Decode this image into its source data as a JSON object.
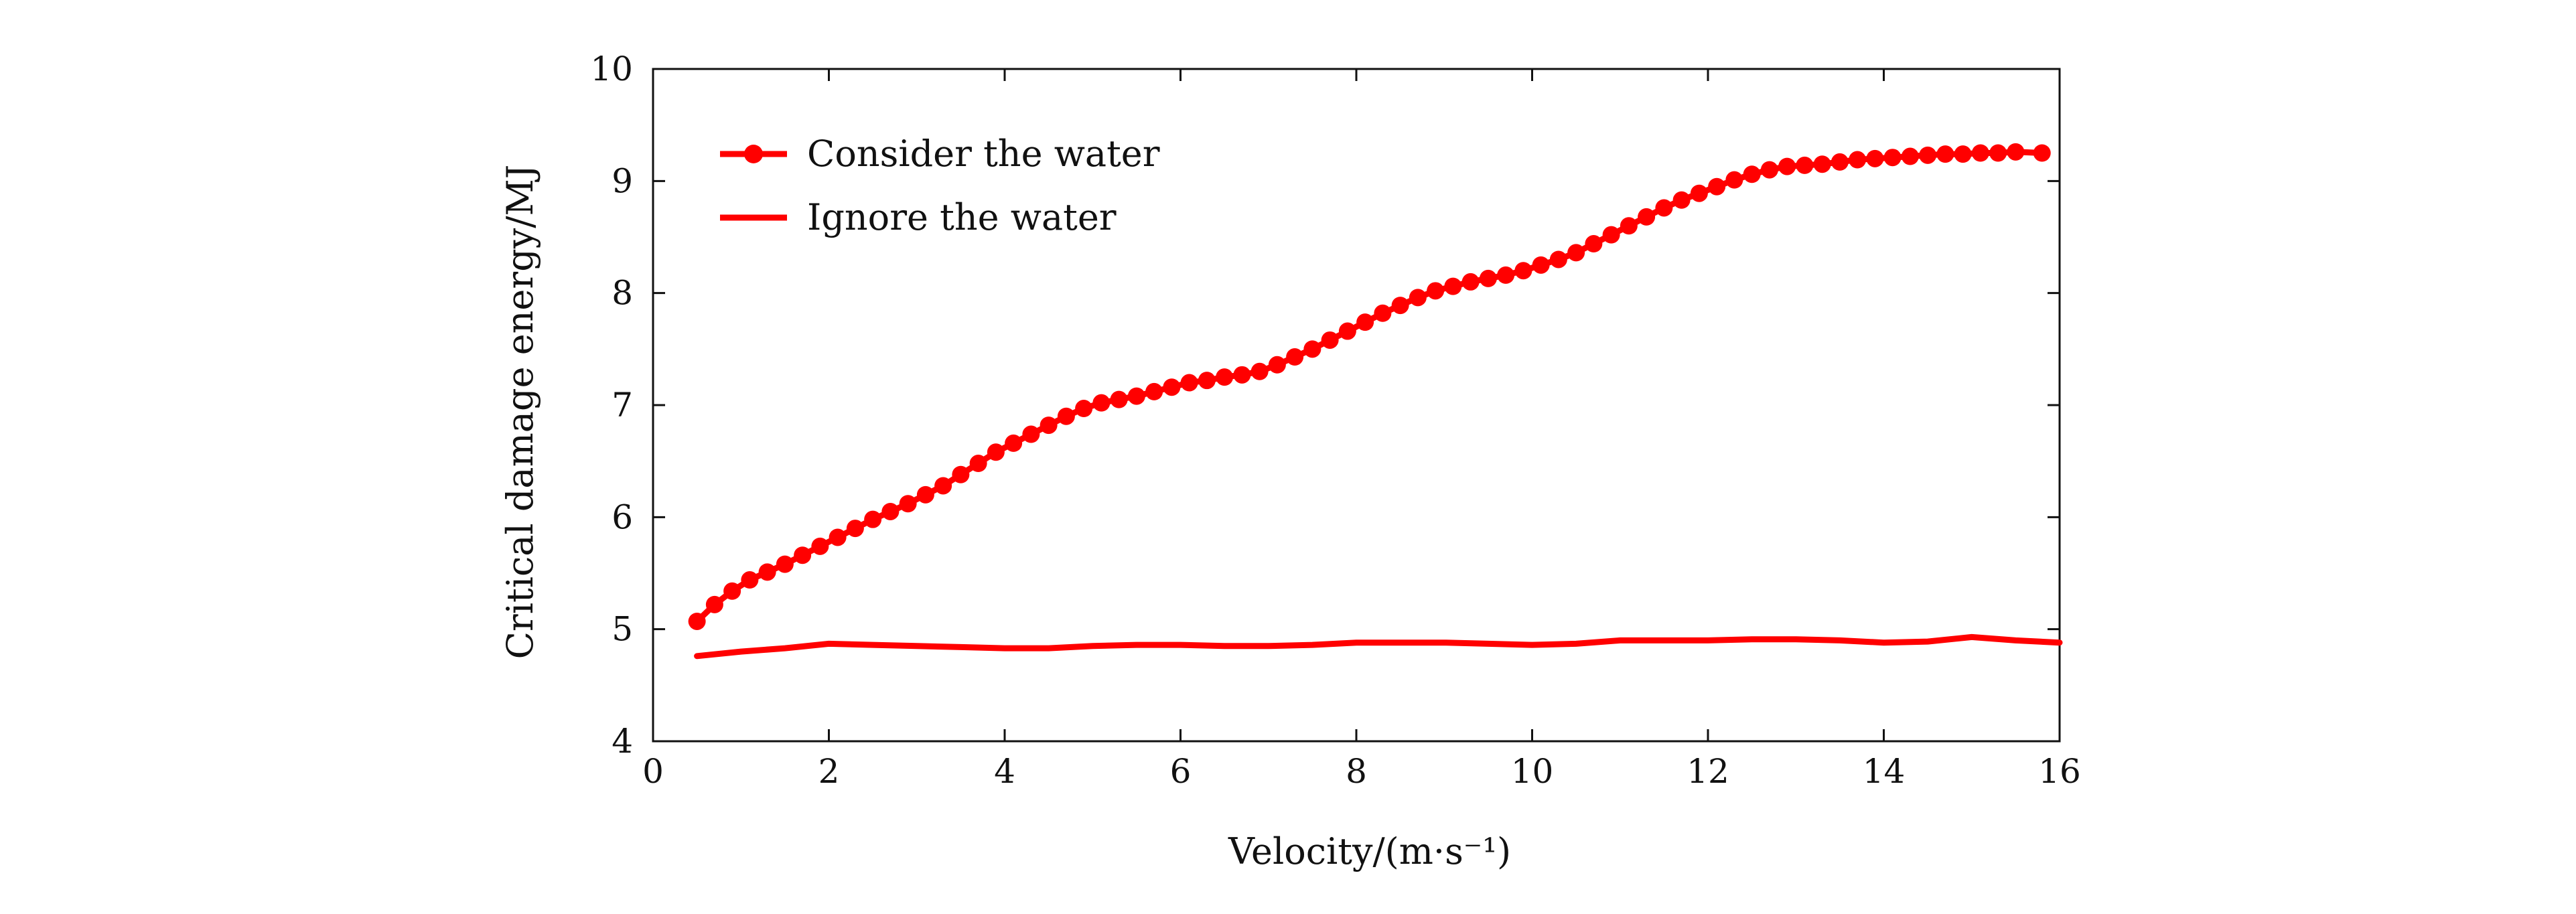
{
  "chart_data": {
    "type": "line",
    "xlabel": "Velocity/(m·s⁻¹)",
    "ylabel": "Critical damage energy/MJ",
    "xlim": [
      0,
      16
    ],
    "ylim": [
      4,
      10
    ],
    "xticks": [
      0,
      2,
      4,
      6,
      8,
      10,
      12,
      14,
      16
    ],
    "yticks": [
      4,
      5,
      6,
      7,
      8,
      9,
      10
    ],
    "grid": false,
    "legend_position": "top-left",
    "colors": {
      "series": "#ff0000",
      "axis": "#111111"
    },
    "series": [
      {
        "name": "Consider the water",
        "marker": "circle",
        "x": [
          0.5,
          0.7,
          0.9,
          1.1,
          1.3,
          1.5,
          1.7,
          1.9,
          2.1,
          2.3,
          2.5,
          2.7,
          2.9,
          3.1,
          3.3,
          3.5,
          3.7,
          3.9,
          4.1,
          4.3,
          4.5,
          4.7,
          4.9,
          5.1,
          5.3,
          5.5,
          5.7,
          5.9,
          6.1,
          6.3,
          6.5,
          6.7,
          6.9,
          7.1,
          7.3,
          7.5,
          7.7,
          7.9,
          8.1,
          8.3,
          8.5,
          8.7,
          8.9,
          9.1,
          9.3,
          9.5,
          9.7,
          9.9,
          10.1,
          10.3,
          10.5,
          10.7,
          10.9,
          11.1,
          11.3,
          11.5,
          11.7,
          11.9,
          12.1,
          12.3,
          12.5,
          12.7,
          12.9,
          13.1,
          13.3,
          13.5,
          13.7,
          13.9,
          14.1,
          14.3,
          14.5,
          14.7,
          14.9,
          15.1,
          15.3,
          15.5,
          15.8
        ],
        "y": [
          5.07,
          5.22,
          5.34,
          5.44,
          5.51,
          5.58,
          5.66,
          5.74,
          5.82,
          5.9,
          5.98,
          6.05,
          6.12,
          6.2,
          6.28,
          6.38,
          6.48,
          6.58,
          6.66,
          6.74,
          6.82,
          6.9,
          6.97,
          7.02,
          7.05,
          7.08,
          7.12,
          7.16,
          7.2,
          7.22,
          7.25,
          7.27,
          7.3,
          7.36,
          7.43,
          7.5,
          7.58,
          7.66,
          7.74,
          7.82,
          7.89,
          7.96,
          8.02,
          8.06,
          8.1,
          8.13,
          8.16,
          8.2,
          8.25,
          8.3,
          8.36,
          8.44,
          8.52,
          8.6,
          8.68,
          8.76,
          8.83,
          8.89,
          8.95,
          9.01,
          9.06,
          9.1,
          9.13,
          9.14,
          9.15,
          9.17,
          9.19,
          9.2,
          9.21,
          9.22,
          9.23,
          9.24,
          9.24,
          9.25,
          9.25,
          9.26,
          9.25
        ]
      },
      {
        "name": "Ignore the water",
        "marker": "none",
        "x": [
          0.5,
          1,
          1.5,
          2,
          2.5,
          3,
          3.5,
          4,
          4.5,
          5,
          5.5,
          6,
          6.5,
          7,
          7.5,
          8,
          8.5,
          9,
          9.5,
          10,
          10.5,
          11,
          11.5,
          12,
          12.5,
          13,
          13.5,
          14,
          14.5,
          15,
          15.5,
          16
        ],
        "y": [
          4.76,
          4.8,
          4.83,
          4.87,
          4.86,
          4.85,
          4.84,
          4.83,
          4.83,
          4.85,
          4.86,
          4.86,
          4.85,
          4.85,
          4.86,
          4.88,
          4.88,
          4.88,
          4.87,
          4.86,
          4.87,
          4.9,
          4.9,
          4.9,
          4.91,
          4.91,
          4.9,
          4.88,
          4.89,
          4.93,
          4.9,
          4.88
        ]
      }
    ]
  }
}
